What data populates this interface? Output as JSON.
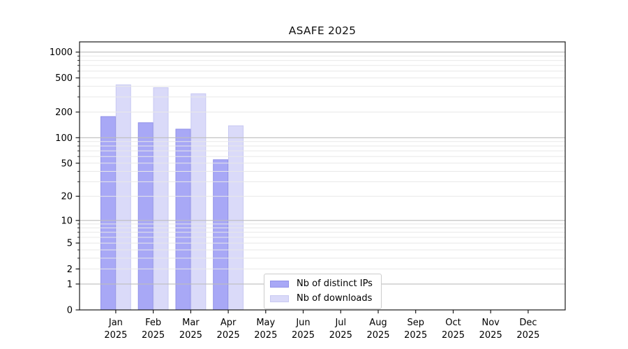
{
  "page": {
    "background": "#ffffff"
  },
  "chart_data": {
    "type": "bar",
    "title": "ASAFE 2025",
    "categories": [
      "Jan 2025",
      "Feb 2025",
      "Mar 2025",
      "Apr 2025",
      "May 2025",
      "Jun 2025",
      "Jul 2025",
      "Aug 2025",
      "Sep 2025",
      "Oct 2025",
      "Nov 2025",
      "Dec 2025"
    ],
    "series": [
      {
        "name": "Nb of distinct IPs",
        "color": "#a8a8f6",
        "edge_color": "#9292e8",
        "values": [
          177,
          150,
          126,
          55,
          null,
          null,
          null,
          null,
          null,
          null,
          null,
          null
        ]
      },
      {
        "name": "Nb of downloads",
        "color": "#dadaf9",
        "edge_color": "#c8c9f2",
        "values": [
          415,
          385,
          327,
          138,
          null,
          null,
          null,
          null,
          null,
          null,
          null,
          null
        ]
      }
    ],
    "y_ticks": [
      0,
      1,
      2,
      5,
      10,
      20,
      50,
      100,
      200,
      500,
      1000
    ],
    "y_scale": "log10(value+1)",
    "ylim": [
      0,
      1270
    ],
    "xlabel": "",
    "ylabel": "",
    "grid": "horizontal log gridlines drawn above bars",
    "legend_position": "lower center",
    "axis_color": "#1a1a1a",
    "major_grid_color": "#bdbdbd",
    "minor_grid_color": "#e8e8e8"
  }
}
